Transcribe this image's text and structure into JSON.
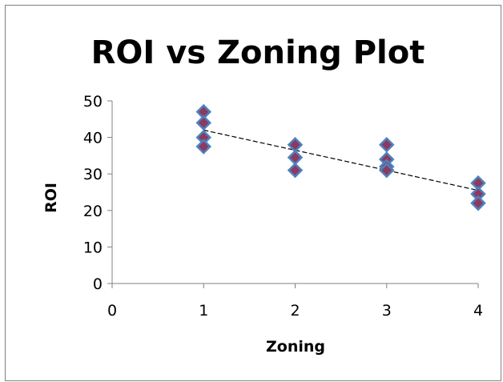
{
  "chart_data": {
    "type": "scatter",
    "title": "ROI vs Zoning Plot",
    "xlabel": "Zoning",
    "ylabel": "ROI",
    "xlim": [
      0,
      4
    ],
    "ylim": [
      0,
      50
    ],
    "x_ticks": [
      "0",
      "1",
      "2",
      "3",
      "4"
    ],
    "y_ticks": [
      "0",
      "10",
      "20",
      "30",
      "40",
      "50"
    ],
    "grid": false,
    "legend": "none",
    "marker": "diamond",
    "colors": {
      "marker_fill": "#8B3A62",
      "marker_edge": "#4F81BD",
      "trendline": "#000000"
    },
    "series": [
      {
        "points": [
          {
            "x": 1,
            "y": 47
          },
          {
            "x": 1,
            "y": 44
          },
          {
            "x": 1,
            "y": 40
          },
          {
            "x": 1,
            "y": 37.5
          },
          {
            "x": 2,
            "y": 38
          },
          {
            "x": 2,
            "y": 34.5
          },
          {
            "x": 2,
            "y": 31
          },
          {
            "x": 3,
            "y": 38
          },
          {
            "x": 3,
            "y": 34
          },
          {
            "x": 3,
            "y": 32
          },
          {
            "x": 3,
            "y": 31
          },
          {
            "x": 4,
            "y": 27.5
          },
          {
            "x": 4,
            "y": 24.5
          },
          {
            "x": 4,
            "y": 22
          }
        ]
      }
    ],
    "trendline": {
      "type": "linear",
      "style": "dashed",
      "x": [
        1,
        4
      ],
      "y": [
        42,
        25.5
      ]
    }
  }
}
